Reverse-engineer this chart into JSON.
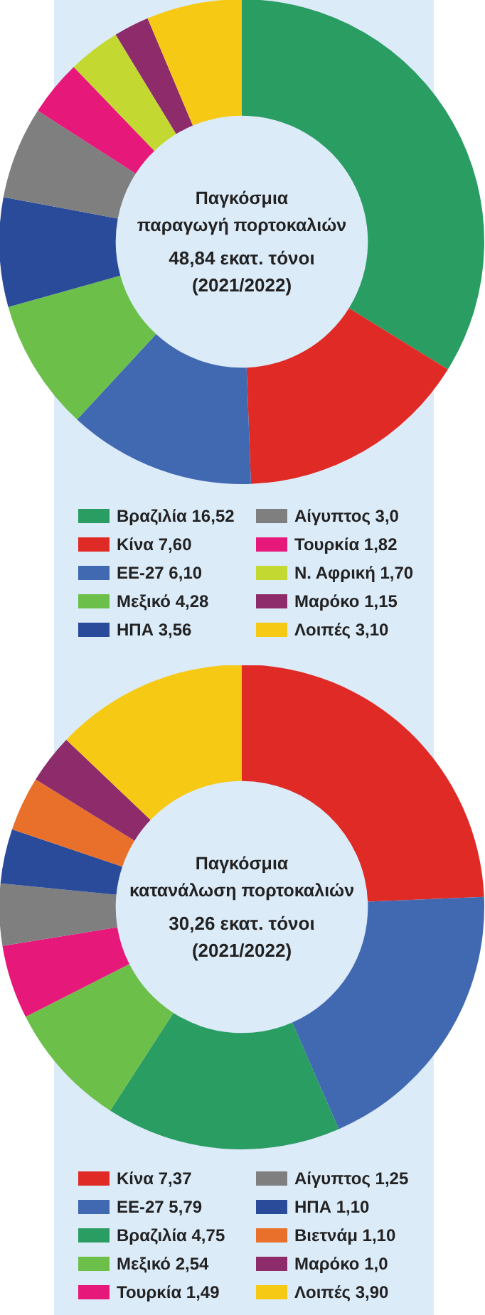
{
  "chart_data": [
    {
      "type": "donut",
      "title": "Παγκόσμια παραγωγή πορτοκαλιών",
      "subtitle": "48,84 εκατ. τόνοι (2021/2022)",
      "categories": [
        "Βραζιλία",
        "Κίνα",
        "ΕΕ-27",
        "Μεξικό",
        "ΗΠΑ",
        "Αίγυπτος",
        "Τουρκία",
        "Ν. Αφρική",
        "Μαρόκο",
        "Λοιπές"
      ],
      "values": [
        16.52,
        7.6,
        6.1,
        4.28,
        3.56,
        3.0,
        1.82,
        1.7,
        1.15,
        3.1
      ],
      "value_labels": [
        "16,52",
        "7,60",
        "6,10",
        "4,28",
        "3,56",
        "3,0",
        "1,82",
        "1,70",
        "1,15",
        "3,10"
      ],
      "colors": [
        "#2a9d62",
        "#e02a26",
        "#4169b2",
        "#6cc04a",
        "#2a4a9a",
        "#7f7f7f",
        "#e6197a",
        "#c3d932",
        "#8e2b6b",
        "#f6c915"
      ],
      "legend": "bottom"
    },
    {
      "type": "donut",
      "title": "Παγκόσμια κατανάλωση πορτοκαλιών",
      "subtitle": "30,26 εκατ. τόνοι (2021/2022)",
      "categories": [
        "Κίνα",
        "ΕΕ-27",
        "Βραζιλία",
        "Μεξικό",
        "Τουρκία",
        "Αίγυπτος",
        "ΗΠΑ",
        "Βιετνάμ",
        "Μαρόκο",
        "Λοιπές"
      ],
      "values": [
        7.37,
        5.79,
        4.75,
        2.54,
        1.49,
        1.25,
        1.1,
        1.1,
        1.0,
        3.9
      ],
      "value_labels": [
        "7,37",
        "5,79",
        "4,75",
        "2,54",
        "1,49",
        "1,25",
        "1,10",
        "1,10",
        "1,0",
        "3,90"
      ],
      "colors": [
        "#e02a26",
        "#4169b2",
        "#2a9d62",
        "#6cc04a",
        "#e6197a",
        "#7f7f7f",
        "#2a4a9a",
        "#e8702a",
        "#8e2b6b",
        "#f6c915"
      ],
      "legend": "bottom"
    }
  ]
}
